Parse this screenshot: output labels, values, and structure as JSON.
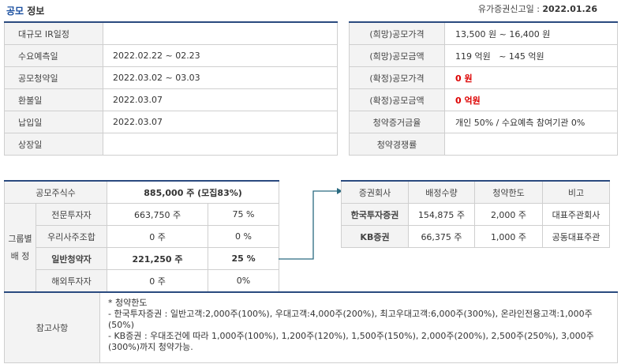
{
  "header": {
    "title_blue": "공모",
    "title_rest": " 정보",
    "filing_label": "유가증권신고일 : ",
    "filing_date": "2022.01.26"
  },
  "schedule": [
    {
      "label": "대규모 IR일정",
      "value": ""
    },
    {
      "label": "수요예측일",
      "value": "2022.02.22 ~ 02.23"
    },
    {
      "label": "공모청약일",
      "value": "2022.03.02 ~ 03.03"
    },
    {
      "label": "환불일",
      "value": "2022.03.07"
    },
    {
      "label": "납입일",
      "value": "2022.03.07"
    },
    {
      "label": "상장일",
      "value": ""
    }
  ],
  "pricing": [
    {
      "label": "(희망)공모가격",
      "value": "13,500 원 ~ 16,400 원"
    },
    {
      "label": "(희망)공모금액",
      "value": "119 억원   ~ 145 억원"
    },
    {
      "label": "(확정)공모가격",
      "value": "0 원"
    },
    {
      "label": "(확정)공모금액",
      "value": "0 억원"
    },
    {
      "label": "청약증거금율",
      "value": "개인 50% / 수요예측 참여기관 0%"
    },
    {
      "label": "청약경쟁률",
      "value": ""
    }
  ],
  "allocation": {
    "total_label": "공모주식수",
    "total_value": "885,000 주 (모집83%)",
    "group_label_1": "그룹별",
    "group_label_2": "배 정",
    "rows": [
      {
        "label": "전문투자자",
        "shares": "663,750 주",
        "pct": "75 %"
      },
      {
        "label": "우리사주조합",
        "shares": "0 주",
        "pct": "0 %"
      },
      {
        "label": "일반청약자",
        "shares": "221,250 주",
        "pct": "25 %"
      },
      {
        "label": "해외투자자",
        "shares": "0 주",
        "pct": "0%"
      }
    ]
  },
  "underwriters": {
    "headers": [
      "증권회사",
      "배정수량",
      "청약한도",
      "비고"
    ],
    "rows": [
      {
        "name": "한국투자증권",
        "qty": "154,875 주",
        "limit": "2,000 주",
        "note": "대표주관회사"
      },
      {
        "name": "KB증권",
        "qty": "66,375 주",
        "limit": "1,000 주",
        "note": "공동대표주관"
      }
    ]
  },
  "notes": {
    "label": "참고사항",
    "lines": [
      "* 청약한도",
      "- 한국투자증권 : 일반고객:2,000주(100%), 우대고객:4,000주(200%), 최고우대고객:6,000주(300%), 온라인전용고객:1,000주(50%)",
      "- KB증권 : 우대조건에 따라 1,000주(100%), 1,200주(120%), 1,500주(150%), 2,000주(200%), 2,500주(250%), 3,000주(300%)까지 청약가능."
    ]
  },
  "colors": {
    "accent": "#2a4a7f",
    "title_blue": "#1a4fa0",
    "red": "#dd0000",
    "label_bg": "#f3f3f3"
  },
  "icons": {
    "arrow": "connector-arrow-icon"
  }
}
